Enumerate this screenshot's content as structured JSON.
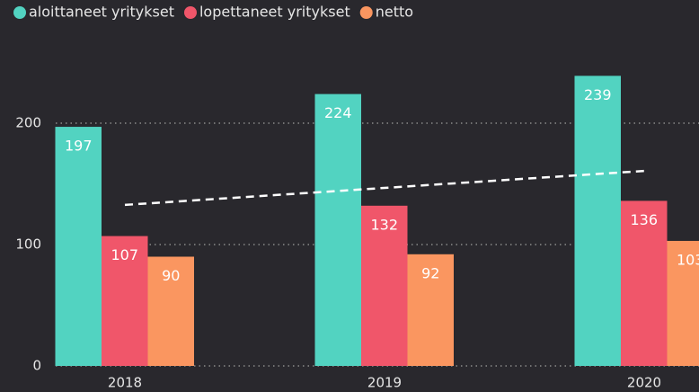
{
  "chart_data": {
    "type": "bar",
    "categories": [
      "2018",
      "2019",
      "2020"
    ],
    "series": [
      {
        "name": "aloittaneet yritykset",
        "color": "#52d3c1",
        "values": [
          197,
          224,
          239
        ]
      },
      {
        "name": "lopettaneet yritykset",
        "color": "#f0566a",
        "values": [
          107,
          132,
          136
        ]
      },
      {
        "name": "netto",
        "color": "#fa9660",
        "values": [
          90,
          92,
          103
        ]
      }
    ],
    "ylim": [
      0,
      250
    ],
    "yticks": [
      0,
      100,
      200
    ],
    "grid": true,
    "legend": "top",
    "trendline": true
  }
}
